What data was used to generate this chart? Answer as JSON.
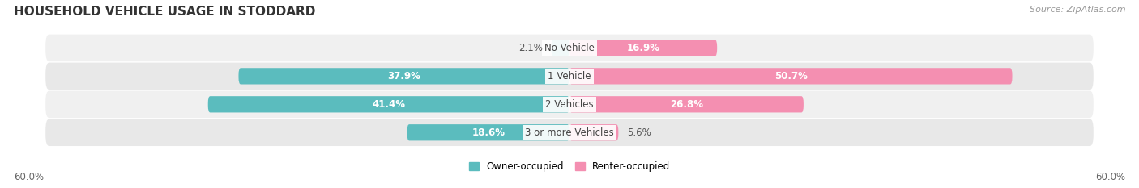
{
  "title": "HOUSEHOLD VEHICLE USAGE IN STODDARD",
  "source": "Source: ZipAtlas.com",
  "categories": [
    "No Vehicle",
    "1 Vehicle",
    "2 Vehicles",
    "3 or more Vehicles"
  ],
  "owner_values": [
    2.1,
    37.9,
    41.4,
    18.6
  ],
  "renter_values": [
    16.9,
    50.7,
    26.8,
    5.6
  ],
  "owner_color": "#5bbcbe",
  "renter_color": "#f48fb1",
  "row_bg_colors": [
    "#f0f0f0",
    "#e8e8e8",
    "#f0f0f0",
    "#e8e8e8"
  ],
  "max_value": 60.0,
  "axis_label_left": "60.0%",
  "axis_label_right": "60.0%",
  "legend_owner": "Owner-occupied",
  "legend_renter": "Renter-occupied",
  "title_fontsize": 11,
  "source_fontsize": 8,
  "bar_label_fontsize": 8.5,
  "legend_fontsize": 8.5,
  "axis_fontsize": 8.5,
  "owner_label_inside_threshold": 8,
  "renter_label_inside_threshold": 10
}
